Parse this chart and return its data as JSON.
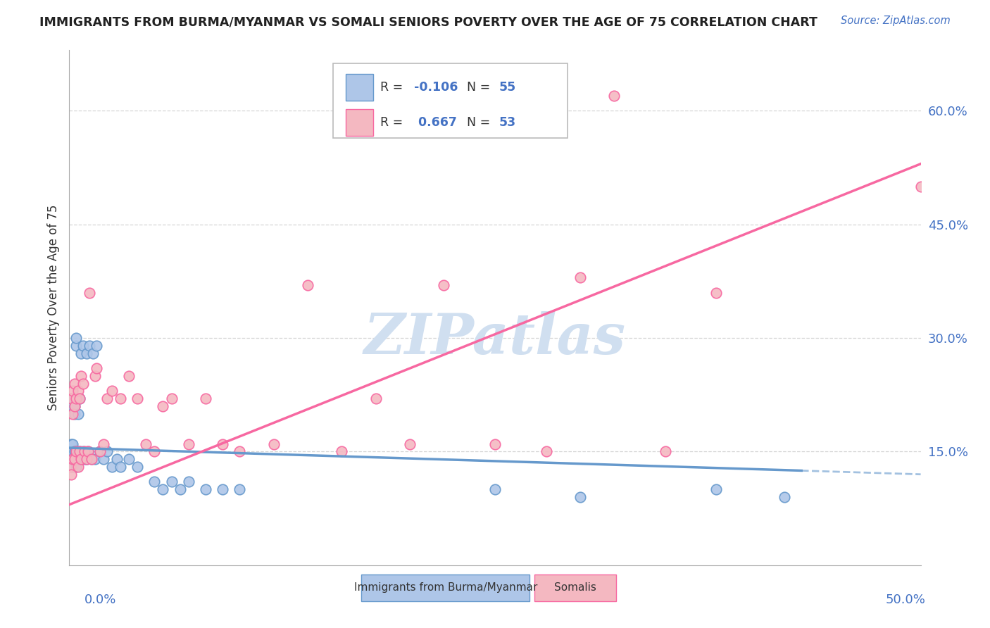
{
  "title": "IMMIGRANTS FROM BURMA/MYANMAR VS SOMALI SENIORS POVERTY OVER THE AGE OF 75 CORRELATION CHART",
  "source": "Source: ZipAtlas.com",
  "ylabel": "Seniors Poverty Over the Age of 75",
  "yticks_right": [
    "60.0%",
    "45.0%",
    "30.0%",
    "15.0%"
  ],
  "ytick_values": [
    0.6,
    0.45,
    0.3,
    0.15
  ],
  "legend_labels_bottom": [
    "Immigrants from Burma/Myanmar",
    "Somalis"
  ],
  "watermark": "ZIPatlas",
  "xlim": [
    0.0,
    0.5
  ],
  "ylim": [
    0.0,
    0.68
  ],
  "burma_x": [
    0.0005,
    0.001,
    0.001,
    0.001,
    0.002,
    0.002,
    0.002,
    0.002,
    0.003,
    0.003,
    0.003,
    0.003,
    0.004,
    0.004,
    0.004,
    0.004,
    0.005,
    0.005,
    0.005,
    0.006,
    0.006,
    0.006,
    0.007,
    0.007,
    0.008,
    0.008,
    0.009,
    0.01,
    0.01,
    0.011,
    0.012,
    0.013,
    0.014,
    0.015,
    0.016,
    0.018,
    0.02,
    0.022,
    0.025,
    0.028,
    0.03,
    0.035,
    0.04,
    0.05,
    0.055,
    0.06,
    0.065,
    0.07,
    0.08,
    0.09,
    0.1,
    0.25,
    0.3,
    0.38,
    0.42
  ],
  "burma_y": [
    0.14,
    0.15,
    0.16,
    0.22,
    0.13,
    0.15,
    0.16,
    0.21,
    0.14,
    0.15,
    0.2,
    0.21,
    0.13,
    0.15,
    0.29,
    0.3,
    0.14,
    0.15,
    0.2,
    0.14,
    0.15,
    0.22,
    0.14,
    0.28,
    0.15,
    0.29,
    0.14,
    0.14,
    0.28,
    0.15,
    0.29,
    0.14,
    0.28,
    0.14,
    0.29,
    0.15,
    0.14,
    0.15,
    0.13,
    0.14,
    0.13,
    0.14,
    0.13,
    0.11,
    0.1,
    0.11,
    0.1,
    0.11,
    0.1,
    0.1,
    0.1,
    0.1,
    0.09,
    0.1,
    0.09
  ],
  "somali_x": [
    0.0005,
    0.001,
    0.001,
    0.002,
    0.002,
    0.002,
    0.003,
    0.003,
    0.003,
    0.004,
    0.004,
    0.005,
    0.005,
    0.006,
    0.006,
    0.007,
    0.007,
    0.008,
    0.009,
    0.01,
    0.011,
    0.012,
    0.013,
    0.015,
    0.016,
    0.018,
    0.02,
    0.022,
    0.025,
    0.03,
    0.035,
    0.04,
    0.045,
    0.05,
    0.055,
    0.06,
    0.07,
    0.08,
    0.09,
    0.1,
    0.12,
    0.14,
    0.16,
    0.18,
    0.2,
    0.22,
    0.25,
    0.28,
    0.3,
    0.32,
    0.35,
    0.38,
    0.5
  ],
  "somali_y": [
    0.13,
    0.12,
    0.22,
    0.14,
    0.2,
    0.23,
    0.14,
    0.21,
    0.24,
    0.15,
    0.22,
    0.13,
    0.23,
    0.15,
    0.22,
    0.14,
    0.25,
    0.24,
    0.15,
    0.14,
    0.15,
    0.36,
    0.14,
    0.25,
    0.26,
    0.15,
    0.16,
    0.22,
    0.23,
    0.22,
    0.25,
    0.22,
    0.16,
    0.15,
    0.21,
    0.22,
    0.16,
    0.22,
    0.16,
    0.15,
    0.16,
    0.37,
    0.15,
    0.22,
    0.16,
    0.37,
    0.16,
    0.15,
    0.38,
    0.62,
    0.15,
    0.36,
    0.5
  ],
  "burma_color": "#aec6e8",
  "somali_color": "#f4b8c1",
  "burma_line_color": "#6699cc",
  "somali_line_color": "#f768a1",
  "bg_color": "#ffffff",
  "grid_color": "#cccccc",
  "title_color": "#222222",
  "axis_label_color": "#4472c4",
  "watermark_color": "#d0dff0",
  "burma_R": "-0.106",
  "burma_N": "55",
  "somali_R": "0.667",
  "somali_N": "53"
}
